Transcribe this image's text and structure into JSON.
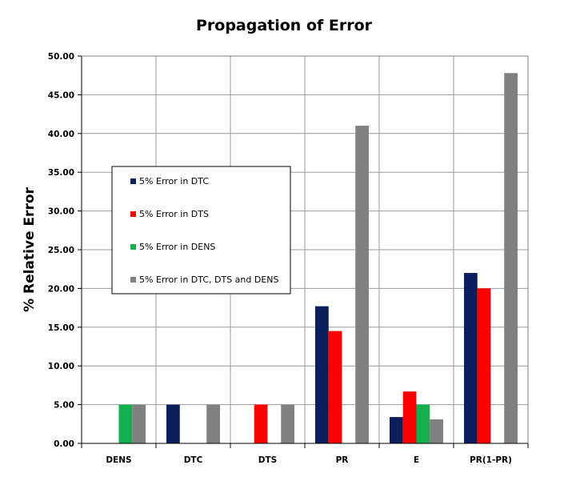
{
  "chart_data": {
    "type": "bar",
    "title": "Propagation of Error",
    "xlabel": "",
    "ylabel": "% Relative Error",
    "categories": [
      "DENS",
      "DTC",
      "DTS",
      "PR",
      "E",
      "PR(1-PR)"
    ],
    "ylim": [
      0,
      50
    ],
    "ytick_step": 5,
    "ytick_format": "0.00",
    "grid": true,
    "legend_position": "left-middle",
    "series": [
      {
        "name": "5% Error in DTC",
        "color": "#0b1f5c",
        "values": [
          0,
          5,
          0,
          17.7,
          3.4,
          22.0
        ]
      },
      {
        "name": "5% Error in DTS",
        "color": "#ff0000",
        "values": [
          0,
          0,
          5,
          14.5,
          6.7,
          20.0
        ]
      },
      {
        "name": "5% Error in DENS",
        "color": "#14b050",
        "values": [
          5,
          0,
          0,
          0,
          5,
          0
        ]
      },
      {
        "name": "5% Error in DTC, DTS and DENS",
        "color": "#808080",
        "values": [
          5,
          5,
          5,
          41.0,
          3.1,
          47.8
        ]
      }
    ]
  }
}
